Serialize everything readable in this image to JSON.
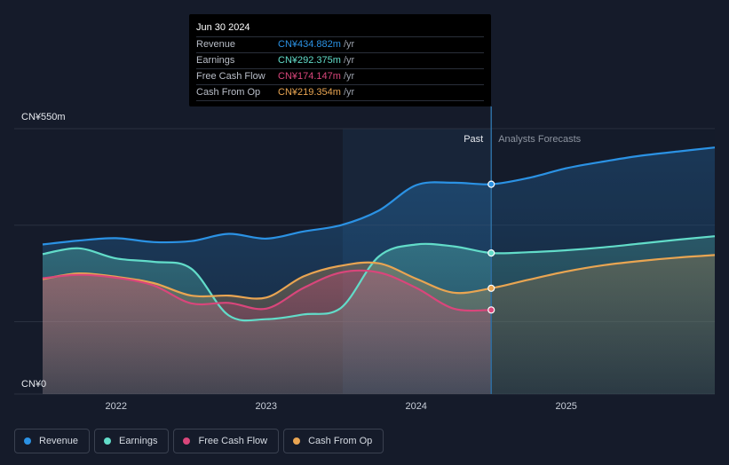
{
  "chart_data": {
    "type": "area",
    "title": "",
    "currency_unit": "CN¥",
    "ylim": [
      0,
      550
    ],
    "y_ticks": [
      {
        "value": 550,
        "label": "CN¥550m"
      },
      {
        "value": 0,
        "label": "CN¥0"
      }
    ],
    "x_ticks": [
      {
        "value": 2022,
        "label": "2022"
      },
      {
        "value": 2023,
        "label": "2023"
      },
      {
        "value": 2024,
        "label": "2024"
      },
      {
        "value": 2025,
        "label": "2025"
      }
    ],
    "xlim": [
      2021.51,
      2025.99
    ],
    "past_start": 2023.51,
    "divider_x": 2024.5,
    "past_label": "Past",
    "forecast_label": "Analysts Forecasts",
    "series": [
      {
        "name": "Revenue",
        "color": "#2b92e4",
        "marker_value": 434.882,
        "points": [
          [
            2021.51,
            310
          ],
          [
            2021.75,
            318
          ],
          [
            2022,
            323
          ],
          [
            2022.25,
            315
          ],
          [
            2022.5,
            317
          ],
          [
            2022.75,
            332
          ],
          [
            2023,
            322
          ],
          [
            2023.25,
            337
          ],
          [
            2023.5,
            350
          ],
          [
            2023.75,
            380
          ],
          [
            2024,
            433
          ],
          [
            2024.25,
            438
          ],
          [
            2024.5,
            434.882
          ],
          [
            2024.75,
            448
          ],
          [
            2025,
            468
          ],
          [
            2025.25,
            482
          ],
          [
            2025.5,
            494
          ],
          [
            2025.75,
            503
          ],
          [
            2025.99,
            511
          ]
        ]
      },
      {
        "name": "Earnings",
        "color": "#62dcc9",
        "marker_value": 292.375,
        "points": [
          [
            2021.51,
            290
          ],
          [
            2021.75,
            302
          ],
          [
            2022,
            281
          ],
          [
            2022.25,
            274
          ],
          [
            2022.5,
            260
          ],
          [
            2022.75,
            163
          ],
          [
            2023,
            155
          ],
          [
            2023.25,
            165
          ],
          [
            2023.5,
            179
          ],
          [
            2023.75,
            285
          ],
          [
            2024,
            310
          ],
          [
            2024.25,
            306
          ],
          [
            2024.5,
            292.375
          ],
          [
            2024.75,
            294
          ],
          [
            2025,
            298
          ],
          [
            2025.25,
            304
          ],
          [
            2025.5,
            312
          ],
          [
            2025.75,
            320
          ],
          [
            2025.99,
            327
          ]
        ]
      },
      {
        "name": "Free Cash Flow",
        "color": "#d9467b",
        "marker_value": 174.147,
        "points": [
          [
            2021.51,
            240
          ],
          [
            2021.75,
            247
          ],
          [
            2022,
            241
          ],
          [
            2022.25,
            225
          ],
          [
            2022.5,
            188
          ],
          [
            2022.75,
            189
          ],
          [
            2023,
            177
          ],
          [
            2023.25,
            220
          ],
          [
            2023.5,
            252
          ],
          [
            2023.75,
            252
          ],
          [
            2024,
            220
          ],
          [
            2024.25,
            177
          ],
          [
            2024.5,
            174.147
          ]
        ]
      },
      {
        "name": "Cash From Op",
        "color": "#e9a552",
        "marker_value": 219.354,
        "points": [
          [
            2021.51,
            238
          ],
          [
            2021.75,
            250
          ],
          [
            2022,
            243
          ],
          [
            2022.25,
            230
          ],
          [
            2022.5,
            204
          ],
          [
            2022.75,
            204
          ],
          [
            2023,
            200
          ],
          [
            2023.25,
            244
          ],
          [
            2023.5,
            266
          ],
          [
            2023.75,
            271
          ],
          [
            2024,
            239
          ],
          [
            2024.25,
            210
          ],
          [
            2024.5,
            219.354
          ],
          [
            2024.75,
            237
          ],
          [
            2025,
            254
          ],
          [
            2025.25,
            267
          ],
          [
            2025.5,
            276
          ],
          [
            2025.75,
            283
          ],
          [
            2025.99,
            288
          ]
        ]
      }
    ]
  },
  "tooltip": {
    "date": "Jun 30 2024",
    "rows": [
      {
        "label": "Revenue",
        "value": "CN¥434.882m",
        "unit": "/yr",
        "color": "#2b92e4"
      },
      {
        "label": "Earnings",
        "value": "CN¥292.375m",
        "unit": "/yr",
        "color": "#62dcc9"
      },
      {
        "label": "Free Cash Flow",
        "value": "CN¥174.147m",
        "unit": "/yr",
        "color": "#d9467b"
      },
      {
        "label": "Cash From Op",
        "value": "CN¥219.354m",
        "unit": "/yr",
        "color": "#e9a552"
      }
    ]
  },
  "legend": [
    {
      "label": "Revenue",
      "color": "#2b92e4"
    },
    {
      "label": "Earnings",
      "color": "#62dcc9"
    },
    {
      "label": "Free Cash Flow",
      "color": "#d9467b"
    },
    {
      "label": "Cash From Op",
      "color": "#e9a552"
    }
  ]
}
